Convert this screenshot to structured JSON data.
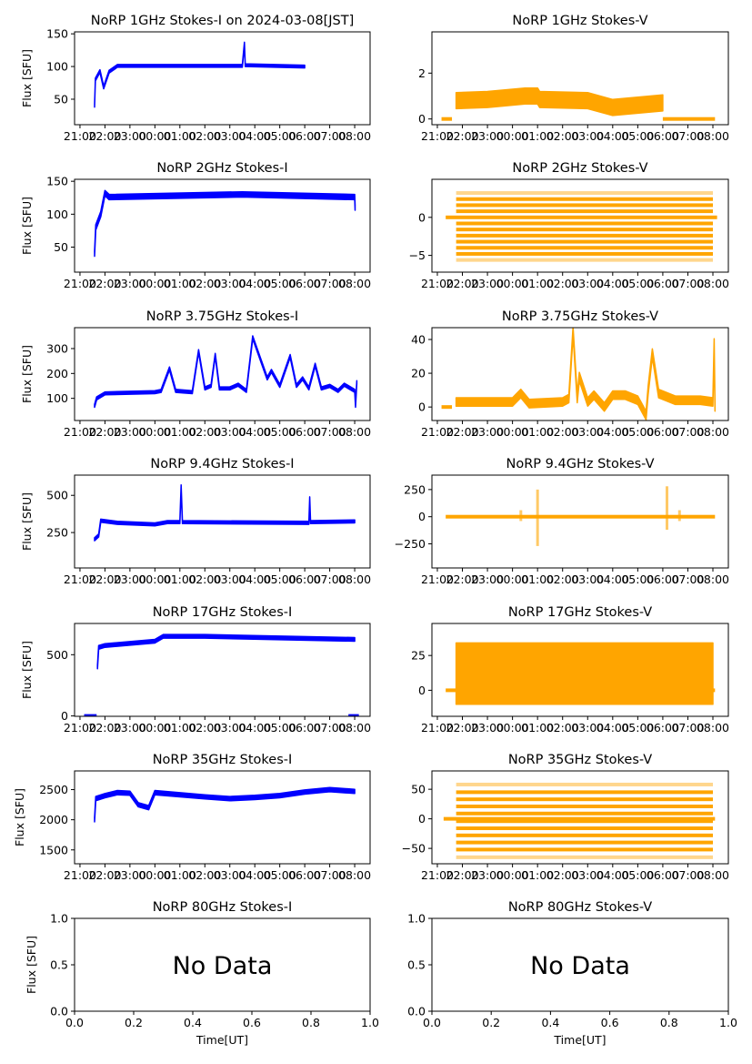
{
  "colors": {
    "stokes_i": "#0000ff",
    "stokes_v": "#ffa500",
    "axes": "#000000"
  },
  "chart_data": [
    {
      "type": "scatter",
      "title": "NoRP 1GHz Stokes-I on 2024-03-08[JST]",
      "ylabel": "Flux [SFU]",
      "xlim": [
        "20:47",
        "08:37"
      ],
      "ylim": [
        11,
        153
      ],
      "yticks": [
        50,
        100,
        150
      ],
      "xticks": [
        "21:00",
        "22:00",
        "23:00",
        "00:00",
        "01:00",
        "02:00",
        "03:00",
        "04:00",
        "05:00",
        "06:00",
        "07:00",
        "08:00"
      ],
      "color": "stokes_i",
      "trace": [
        [
          "21:35",
          40
        ],
        [
          "21:37",
          80
        ],
        [
          "21:48",
          93
        ],
        [
          "21:57",
          68
        ],
        [
          "22:10",
          92
        ],
        [
          "22:30",
          101
        ],
        [
          "03:30",
          101
        ],
        [
          "03:35",
          135
        ],
        [
          "03:37",
          102
        ],
        [
          "06:00",
          100
        ]
      ],
      "spread": 2
    },
    {
      "type": "scatter",
      "title": "NoRP 1GHz Stokes-V",
      "ylabel": "",
      "xlim": [
        "20:47",
        "08:37"
      ],
      "ylim": [
        -0.25,
        3.8
      ],
      "yticks": [
        0,
        2
      ],
      "xticks": [
        "21:00",
        "22:00",
        "23:00",
        "00:00",
        "01:00",
        "02:00",
        "03:00",
        "04:00",
        "05:00",
        "06:00",
        "07:00",
        "08:00"
      ],
      "color": "stokes_v",
      "zero_segments": [
        [
          "21:10",
          "21:35"
        ],
        [
          "06:00",
          "08:05"
        ]
      ],
      "trace": [
        [
          "21:45",
          0.8
        ],
        [
          "23:00",
          0.85
        ],
        [
          "00:30",
          1.0
        ],
        [
          "01:00",
          1.0
        ],
        [
          "01:05",
          0.85
        ],
        [
          "03:00",
          0.8
        ],
        [
          "04:00",
          0.5
        ],
        [
          "05:00",
          0.6
        ],
        [
          "06:00",
          0.7
        ]
      ],
      "spread": 0.35
    },
    {
      "type": "scatter",
      "title": "NoRP 2GHz Stokes-I",
      "ylabel": "Flux [SFU]",
      "xlim": [
        "20:47",
        "08:37"
      ],
      "ylim": [
        12,
        153
      ],
      "yticks": [
        50,
        100,
        150
      ],
      "xticks": [
        "21:00",
        "22:00",
        "23:00",
        "00:00",
        "01:00",
        "02:00",
        "03:00",
        "04:00",
        "05:00",
        "06:00",
        "07:00",
        "08:00"
      ],
      "color": "stokes_i",
      "trace": [
        [
          "21:35",
          40
        ],
        [
          "21:38",
          80
        ],
        [
          "21:50",
          100
        ],
        [
          "22:00",
          132
        ],
        [
          "22:10",
          126
        ],
        [
          "03:30",
          130
        ],
        [
          "08:00",
          126
        ],
        [
          "08:01",
          110
        ]
      ],
      "spread": 4
    },
    {
      "type": "scatter",
      "title": "NoRP 2GHz Stokes-V",
      "ylabel": "",
      "xlim": [
        "20:47",
        "08:37"
      ],
      "ylim": [
        -7.2,
        5
      ],
      "yticks": [
        -5,
        0
      ],
      "xticks": [
        "21:00",
        "22:00",
        "23:00",
        "00:00",
        "01:00",
        "02:00",
        "03:00",
        "04:00",
        "05:00",
        "06:00",
        "07:00",
        "08:00"
      ],
      "color": "stokes_v",
      "zero_segments": [
        [
          "21:20",
          "08:10"
        ]
      ],
      "levels": [
        -5.6,
        -4.8,
        -4.0,
        -3.2,
        -2.4,
        -1.6,
        -0.8,
        0.8,
        1.6,
        2.4,
        3.2
      ],
      "level_span": [
        "21:45",
        "08:00"
      ]
    },
    {
      "type": "scatter",
      "title": "NoRP 3.75GHz Stokes-I",
      "ylabel": "Flux [SFU]",
      "xlim": [
        "20:47",
        "08:37"
      ],
      "ylim": [
        11,
        384
      ],
      "yticks": [
        100,
        200,
        300
      ],
      "xticks": [
        "21:00",
        "22:00",
        "23:00",
        "00:00",
        "01:00",
        "02:00",
        "03:00",
        "04:00",
        "05:00",
        "06:00",
        "07:00",
        "08:00"
      ],
      "color": "stokes_i",
      "trace": [
        [
          "21:35",
          70
        ],
        [
          "21:40",
          100
        ],
        [
          "22:00",
          120
        ],
        [
          "00:00",
          125
        ],
        [
          "00:15",
          130
        ],
        [
          "00:35",
          220
        ],
        [
          "00:50",
          130
        ],
        [
          "01:30",
          125
        ],
        [
          "01:45",
          290
        ],
        [
          "02:00",
          140
        ],
        [
          "02:15",
          150
        ],
        [
          "02:25",
          275
        ],
        [
          "02:35",
          140
        ],
        [
          "03:00",
          140
        ],
        [
          "03:20",
          155
        ],
        [
          "03:40",
          130
        ],
        [
          "03:55",
          345
        ],
        [
          "04:15",
          250
        ],
        [
          "04:30",
          180
        ],
        [
          "04:40",
          210
        ],
        [
          "05:00",
          150
        ],
        [
          "05:25",
          270
        ],
        [
          "05:40",
          150
        ],
        [
          "05:55",
          180
        ],
        [
          "06:10",
          140
        ],
        [
          "06:25",
          235
        ],
        [
          "06:40",
          140
        ],
        [
          "07:00",
          150
        ],
        [
          "07:20",
          130
        ],
        [
          "07:35",
          155
        ],
        [
          "08:00",
          130
        ],
        [
          "08:02",
          70
        ],
        [
          "08:05",
          165
        ]
      ],
      "spread": 6
    },
    {
      "type": "scatter",
      "title": "NoRP 3.75GHz Stokes-V",
      "ylabel": "",
      "xlim": [
        "20:47",
        "08:37"
      ],
      "ylim": [
        -8,
        47
      ],
      "yticks": [
        0,
        20,
        40
      ],
      "xticks": [
        "21:00",
        "22:00",
        "23:00",
        "00:00",
        "01:00",
        "02:00",
        "03:00",
        "04:00",
        "05:00",
        "06:00",
        "07:00",
        "08:00"
      ],
      "color": "stokes_v",
      "zero_segments": [
        [
          "21:10",
          "21:35"
        ]
      ],
      "trace": [
        [
          "21:45",
          3
        ],
        [
          "00:00",
          3
        ],
        [
          "00:20",
          8
        ],
        [
          "00:40",
          2
        ],
        [
          "02:00",
          3
        ],
        [
          "02:15",
          5
        ],
        [
          "02:25",
          45
        ],
        [
          "02:35",
          5
        ],
        [
          "02:40",
          18
        ],
        [
          "03:00",
          3
        ],
        [
          "03:15",
          7
        ],
        [
          "03:40",
          0
        ],
        [
          "04:00",
          7
        ],
        [
          "04:30",
          7
        ],
        [
          "05:00",
          4
        ],
        [
          "05:20",
          -5
        ],
        [
          "05:25",
          10
        ],
        [
          "05:35",
          32
        ],
        [
          "05:50",
          8
        ],
        [
          "06:30",
          4
        ],
        [
          "07:30",
          4
        ],
        [
          "08:00",
          3
        ],
        [
          "08:03",
          38
        ],
        [
          "08:05",
          0
        ]
      ],
      "spread": 2.5
    },
    {
      "type": "scatter",
      "title": "NoRP 9.4GHz Stokes-I",
      "ylabel": "Flux [SFU]",
      "xlim": [
        "20:47",
        "08:37"
      ],
      "ylim": [
        12,
        636
      ],
      "yticks": [
        250,
        500
      ],
      "xticks": [
        "21:00",
        "22:00",
        "23:00",
        "00:00",
        "01:00",
        "02:00",
        "03:00",
        "04:00",
        "05:00",
        "06:00",
        "07:00",
        "08:00"
      ],
      "color": "stokes_i",
      "trace": [
        [
          "21:35",
          205
        ],
        [
          "21:45",
          230
        ],
        [
          "21:50",
          330
        ],
        [
          "22:30",
          315
        ],
        [
          "00:00",
          305
        ],
        [
          "00:30",
          320
        ],
        [
          "01:00",
          320
        ],
        [
          "01:03",
          560
        ],
        [
          "01:06",
          320
        ],
        [
          "06:10",
          315
        ],
        [
          "06:12",
          480
        ],
        [
          "06:14",
          320
        ],
        [
          "08:00",
          325
        ]
      ],
      "spread": 10
    },
    {
      "type": "scatter",
      "title": "NoRP 9.4GHz Stokes-V",
      "ylabel": "",
      "xlim": [
        "20:47",
        "08:37"
      ],
      "ylim": [
        -472,
        383
      ],
      "yticks": [
        -250,
        0,
        250
      ],
      "xticks": [
        "21:00",
        "22:00",
        "23:00",
        "00:00",
        "01:00",
        "02:00",
        "03:00",
        "04:00",
        "05:00",
        "06:00",
        "07:00",
        "08:00"
      ],
      "color": "stokes_v",
      "zero_segments": [
        [
          "21:20",
          "08:05"
        ]
      ],
      "spikes": [
        [
          "01:00",
          -270,
          250
        ],
        [
          "06:10",
          -120,
          280
        ],
        [
          "00:20",
          -40,
          60
        ],
        [
          "06:40",
          -40,
          60
        ]
      ]
    },
    {
      "type": "scatter",
      "title": "NoRP 17GHz Stokes-I",
      "ylabel": "Flux [SFU]",
      "xlim": [
        "20:47",
        "08:37"
      ],
      "ylim": [
        -3,
        755
      ],
      "yticks": [
        0,
        500
      ],
      "xticks": [
        "21:00",
        "22:00",
        "23:00",
        "00:00",
        "01:00",
        "02:00",
        "03:00",
        "04:00",
        "05:00",
        "06:00",
        "07:00",
        "08:00"
      ],
      "color": "stokes_i",
      "zero_segments": [
        [
          "21:10",
          "21:40"
        ],
        [
          "07:45",
          "08:10"
        ]
      ],
      "trace": [
        [
          "21:42",
          400
        ],
        [
          "21:45",
          560
        ],
        [
          "22:00",
          575
        ],
        [
          "00:00",
          610
        ],
        [
          "00:20",
          650
        ],
        [
          "02:00",
          650
        ],
        [
          "08:00",
          625
        ]
      ],
      "spread": 15
    },
    {
      "type": "scatter",
      "title": "NoRP 17GHz Stokes-V",
      "ylabel": "",
      "xlim": [
        "20:47",
        "08:37"
      ],
      "ylim": [
        -18.7,
        48
      ],
      "yticks": [
        0,
        25
      ],
      "xticks": [
        "21:00",
        "22:00",
        "23:00",
        "00:00",
        "01:00",
        "02:00",
        "03:00",
        "04:00",
        "05:00",
        "06:00",
        "07:00",
        "08:00"
      ],
      "color": "stokes_v",
      "zero_segments": [
        [
          "21:20",
          "08:05"
        ]
      ],
      "trace": [
        [
          "21:45",
          12
        ],
        [
          "08:00",
          12
        ]
      ],
      "spread": 22
    },
    {
      "type": "scatter",
      "title": "NoRP 35GHz Stokes-I",
      "ylabel": "Flux [SFU]",
      "xlim": [
        "20:47",
        "08:37"
      ],
      "ylim": [
        1270,
        2810
      ],
      "yticks": [
        1500,
        2000,
        2500
      ],
      "xticks": [
        "21:00",
        "22:00",
        "23:00",
        "00:00",
        "01:00",
        "02:00",
        "03:00",
        "04:00",
        "05:00",
        "06:00",
        "07:00",
        "08:00"
      ],
      "color": "stokes_i",
      "trace": [
        [
          "21:35",
          2000
        ],
        [
          "21:38",
          2350
        ],
        [
          "22:00",
          2400
        ],
        [
          "22:30",
          2450
        ],
        [
          "23:00",
          2440
        ],
        [
          "23:20",
          2250
        ],
        [
          "23:45",
          2200
        ],
        [
          "00:00",
          2450
        ],
        [
          "02:00",
          2380
        ],
        [
          "03:00",
          2350
        ],
        [
          "04:00",
          2370
        ],
        [
          "05:00",
          2400
        ],
        [
          "06:00",
          2460
        ],
        [
          "07:00",
          2500
        ],
        [
          "08:00",
          2470
        ]
      ],
      "spread": 35
    },
    {
      "type": "scatter",
      "title": "NoRP 35GHz Stokes-V",
      "ylabel": "",
      "xlim": [
        "20:47",
        "08:37"
      ],
      "ylim": [
        -76,
        81
      ],
      "yticks": [
        -50,
        0,
        50
      ],
      "xticks": [
        "21:00",
        "22:00",
        "23:00",
        "00:00",
        "01:00",
        "02:00",
        "03:00",
        "04:00",
        "05:00",
        "06:00",
        "07:00",
        "08:00"
      ],
      "color": "stokes_v",
      "zero_segments": [
        [
          "21:15",
          "08:05"
        ]
      ],
      "levels": [
        -65,
        -52,
        -40,
        -28,
        -16,
        -4,
        9,
        21,
        33,
        45,
        58
      ],
      "level_span": [
        "21:45",
        "08:00"
      ]
    },
    {
      "type": "scatter",
      "title": "NoRP 80GHz Stokes-I",
      "ylabel": "Flux [SFU]",
      "xlabel": "Time[UT]",
      "xlim": [
        0,
        1
      ],
      "ylim": [
        0,
        1
      ],
      "yticks": [
        "0.0",
        "0.5",
        "1.0"
      ],
      "xticks": [
        "0.0",
        "0.2",
        "0.4",
        "0.6",
        "0.8",
        "1.0"
      ],
      "annotation": "No Data"
    },
    {
      "type": "scatter",
      "title": "NoRP 80GHz Stokes-V",
      "ylabel": "",
      "xlabel": "Time[UT]",
      "xlim": [
        0,
        1
      ],
      "ylim": [
        0,
        1
      ],
      "yticks": [
        "0.0",
        "0.5",
        "1.0"
      ],
      "xticks": [
        "0.0",
        "0.2",
        "0.4",
        "0.6",
        "0.8",
        "1.0"
      ],
      "annotation": "No Data"
    }
  ]
}
